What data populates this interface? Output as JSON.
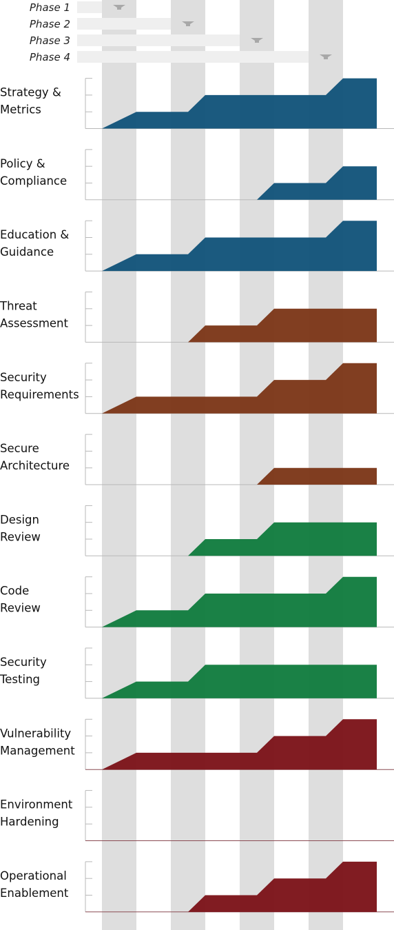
{
  "colors": {
    "governance": "#0f5178",
    "construction": "#7a3415",
    "verification": "#0e7a3c",
    "deployment": "#7a1016",
    "phase_band": "#dedede",
    "phase_bar": "#efefef",
    "arrow": "#a8a8a8",
    "axis": "#b8b8b8",
    "baseline_red": "#8a4a52"
  },
  "chart_data": {
    "type": "area",
    "phases": [
      "Phase 1",
      "Phase 2",
      "Phase 3",
      "Phase 4"
    ],
    "ylim": [
      0,
      3
    ],
    "grid": false,
    "legend": "none",
    "x_positions": [
      "start",
      "Phase 1",
      "Phase 2",
      "Phase 3",
      "Phase 4"
    ],
    "series": [
      {
        "label_lines": [
          "Strategy &",
          "Metrics"
        ],
        "group": "governance",
        "values": [
          0,
          1,
          2,
          2,
          3
        ]
      },
      {
        "label_lines": [
          "Policy &",
          "Compliance"
        ],
        "group": "governance",
        "values": [
          0,
          0,
          0,
          1,
          2
        ]
      },
      {
        "label_lines": [
          "Education &",
          "Guidance"
        ],
        "group": "governance",
        "values": [
          0,
          1,
          2,
          2,
          3
        ]
      },
      {
        "label_lines": [
          "Threat",
          "Assessment"
        ],
        "group": "construction",
        "values": [
          0,
          0,
          1,
          2,
          2
        ]
      },
      {
        "label_lines": [
          "Security",
          "Requirements"
        ],
        "group": "construction",
        "values": [
          0,
          1,
          1,
          2,
          3
        ]
      },
      {
        "label_lines": [
          "Secure",
          "Architecture"
        ],
        "group": "construction",
        "values": [
          0,
          0,
          0,
          1,
          1
        ]
      },
      {
        "label_lines": [
          "Design",
          "Review"
        ],
        "group": "verification",
        "values": [
          0,
          0,
          1,
          2,
          2
        ]
      },
      {
        "label_lines": [
          "Code",
          "Review"
        ],
        "group": "verification",
        "values": [
          0,
          1,
          2,
          2,
          3
        ]
      },
      {
        "label_lines": [
          "Security",
          "Testing"
        ],
        "group": "verification",
        "values": [
          0,
          1,
          2,
          2,
          2
        ]
      },
      {
        "label_lines": [
          "Vulnerability",
          "Management"
        ],
        "group": "deployment",
        "values": [
          0,
          1,
          1,
          2,
          3
        ]
      },
      {
        "label_lines": [
          "Environment",
          "Hardening"
        ],
        "group": "deployment",
        "values": [
          0,
          0,
          0,
          0,
          0
        ]
      },
      {
        "label_lines": [
          "Operational",
          "Enablement"
        ],
        "group": "deployment",
        "values": [
          0,
          0,
          1,
          2,
          3
        ]
      }
    ]
  }
}
